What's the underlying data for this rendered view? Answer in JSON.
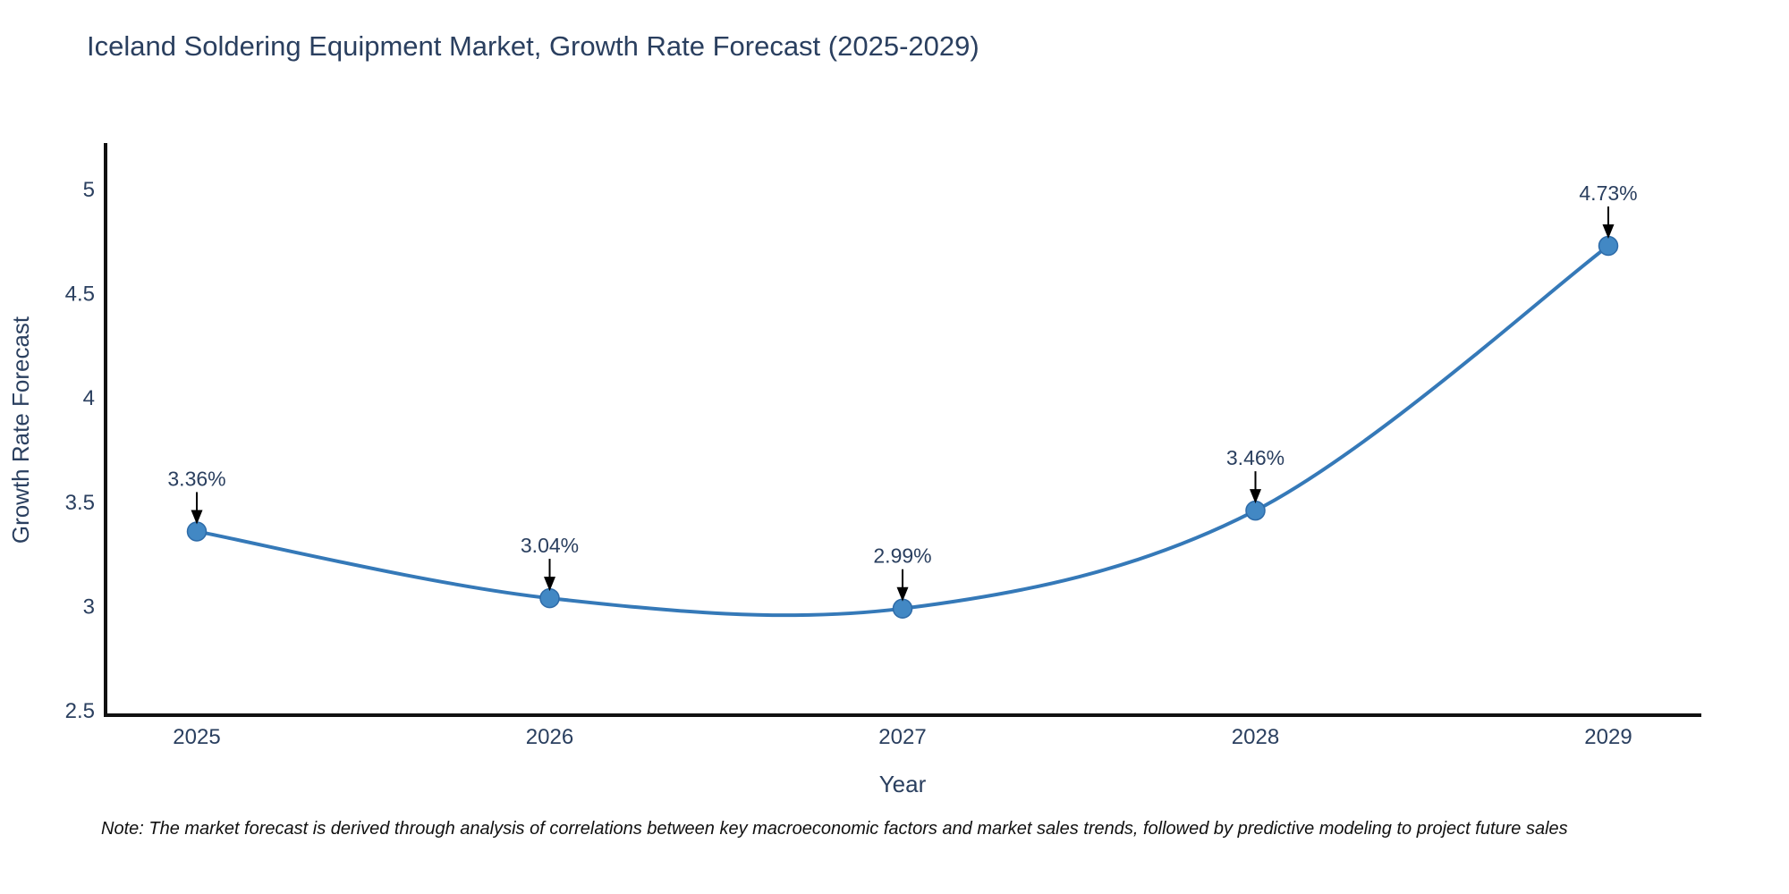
{
  "title": "Iceland Soldering Equipment Market, Growth Rate Forecast (2025-2029)",
  "note": "Note: The market forecast is derived through analysis of correlations between key macroeconomic factors and market sales trends, followed by predictive modeling to project future sales",
  "chart_data": {
    "type": "line",
    "title": "Iceland Soldering Equipment Market, Growth Rate Forecast (2025-2029)",
    "xlabel": "Year",
    "ylabel": "Growth Rate Forecast",
    "x": [
      2025,
      2026,
      2027,
      2028,
      2029
    ],
    "values": [
      3.36,
      3.04,
      2.99,
      3.46,
      4.73
    ],
    "point_labels": [
      "3.36%",
      "3.04%",
      "2.99%",
      "3.46%",
      "4.73%"
    ],
    "x_tick_labels": [
      "2025",
      "2026",
      "2027",
      "2028",
      "2029"
    ],
    "y_tick_values": [
      2.5,
      3,
      3.5,
      4,
      4.5,
      5
    ],
    "y_tick_labels": [
      "2.5",
      "3",
      "3.5",
      "4",
      "4.5",
      "5"
    ],
    "xlim": [
      2024.74,
      2029.26
    ],
    "ylim": [
      2.47,
      5.25
    ],
    "grid": false,
    "legend": "none",
    "line_shape": "spline",
    "colors": {
      "line": "#3579b8",
      "marker_fill": "#4288c4",
      "marker_edge": "#2e6ba8",
      "arrow": "#000000",
      "axis_line": "#111111",
      "label_text": "#2a3f5f",
      "note_text": "#111111",
      "background": "#ffffff"
    }
  }
}
